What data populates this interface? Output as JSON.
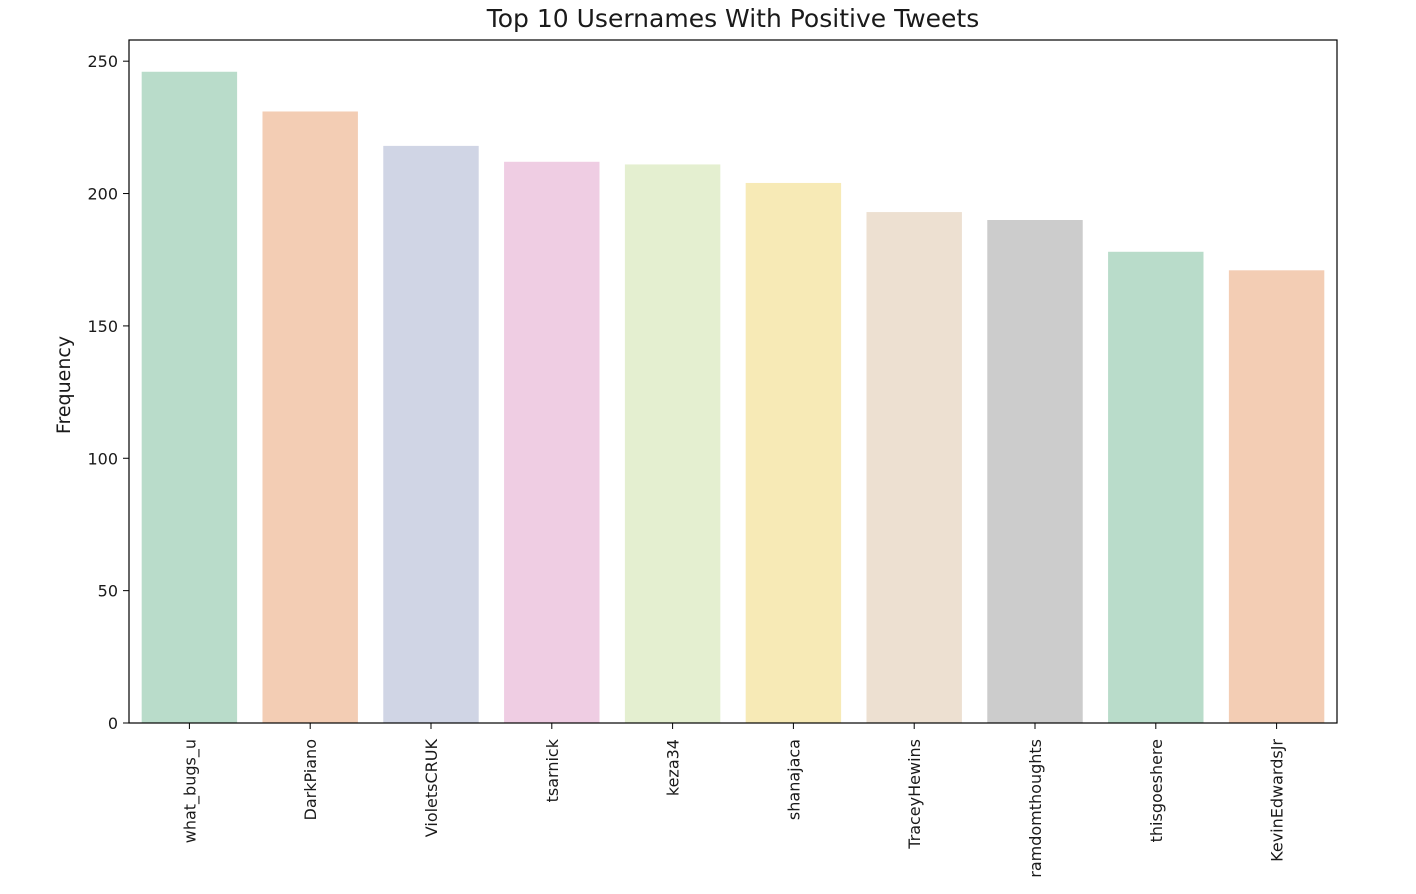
{
  "chart_data": {
    "type": "bar",
    "title": "Top 10 Usernames With Positive Tweets",
    "xlabel": "",
    "ylabel": "Frequency",
    "categories": [
      "what_bugs_u",
      "DarkPiano",
      "VioletsCRUK",
      "tsarnick",
      "keza34",
      "shanajaca",
      "TraceyHewins",
      "ramdomthoughts",
      "thisgoeshere",
      "KevinEdwardsJr"
    ],
    "values": [
      246,
      231,
      218,
      212,
      211,
      204,
      193,
      190,
      178,
      171
    ],
    "yticks": [
      "0",
      "50",
      "100",
      "150",
      "200",
      "250"
    ],
    "ylim": [
      0,
      258
    ],
    "grid": false,
    "colors": [
      "#b9dcca",
      "#f3cdb4",
      "#d0d5e5",
      "#efcde3",
      "#e4efd0",
      "#f7eab6",
      "#ede0d1",
      "#cccccc",
      "#b9dcca",
      "#f3cdb4"
    ]
  }
}
